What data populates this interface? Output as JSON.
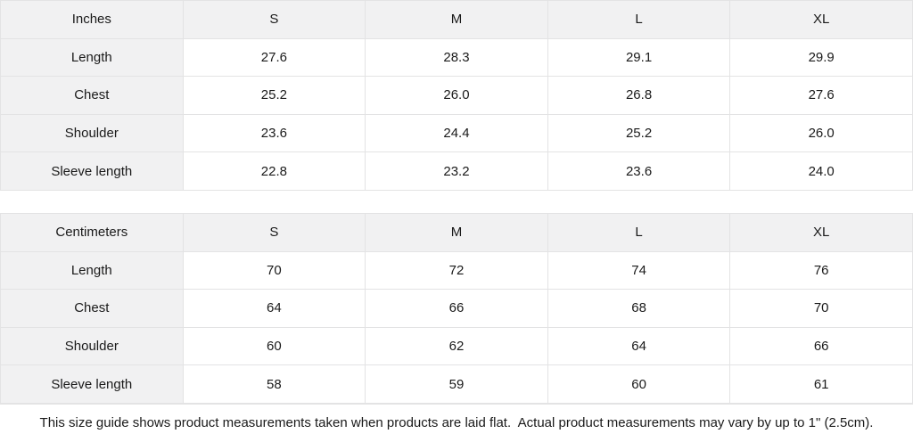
{
  "colors": {
    "shaded_bg": "#f1f1f2",
    "cell_bg": "#ffffff",
    "border": "#e3e3e4",
    "text": "#1a1a1a"
  },
  "chart_data": [
    {
      "type": "table",
      "title": "Inches",
      "columns": [
        "Inches",
        "S",
        "M",
        "L",
        "XL"
      ],
      "rows": [
        {
          "label": "Length",
          "values": [
            "27.6",
            "28.3",
            "29.1",
            "29.9"
          ]
        },
        {
          "label": "Chest",
          "values": [
            "25.2",
            "26.0",
            "26.8",
            "27.6"
          ]
        },
        {
          "label": "Shoulder",
          "values": [
            "23.6",
            "24.4",
            "25.2",
            "26.0"
          ]
        },
        {
          "label": "Sleeve length",
          "values": [
            "22.8",
            "23.2",
            "23.6",
            "24.0"
          ]
        }
      ]
    },
    {
      "type": "table",
      "title": "Centimeters",
      "columns": [
        "Centimeters",
        "S",
        "M",
        "L",
        "XL"
      ],
      "rows": [
        {
          "label": "Length",
          "values": [
            "70",
            "72",
            "74",
            "76"
          ]
        },
        {
          "label": "Chest",
          "values": [
            "64",
            "66",
            "68",
            "70"
          ]
        },
        {
          "label": "Shoulder",
          "values": [
            "60",
            "62",
            "64",
            "66"
          ]
        },
        {
          "label": "Sleeve length",
          "values": [
            "58",
            "59",
            "60",
            "61"
          ]
        }
      ]
    }
  ],
  "footer": {
    "note": "This size guide shows product measurements taken when products are laid flat.  Actual product measurements may vary by up to 1\" (2.5cm)."
  }
}
